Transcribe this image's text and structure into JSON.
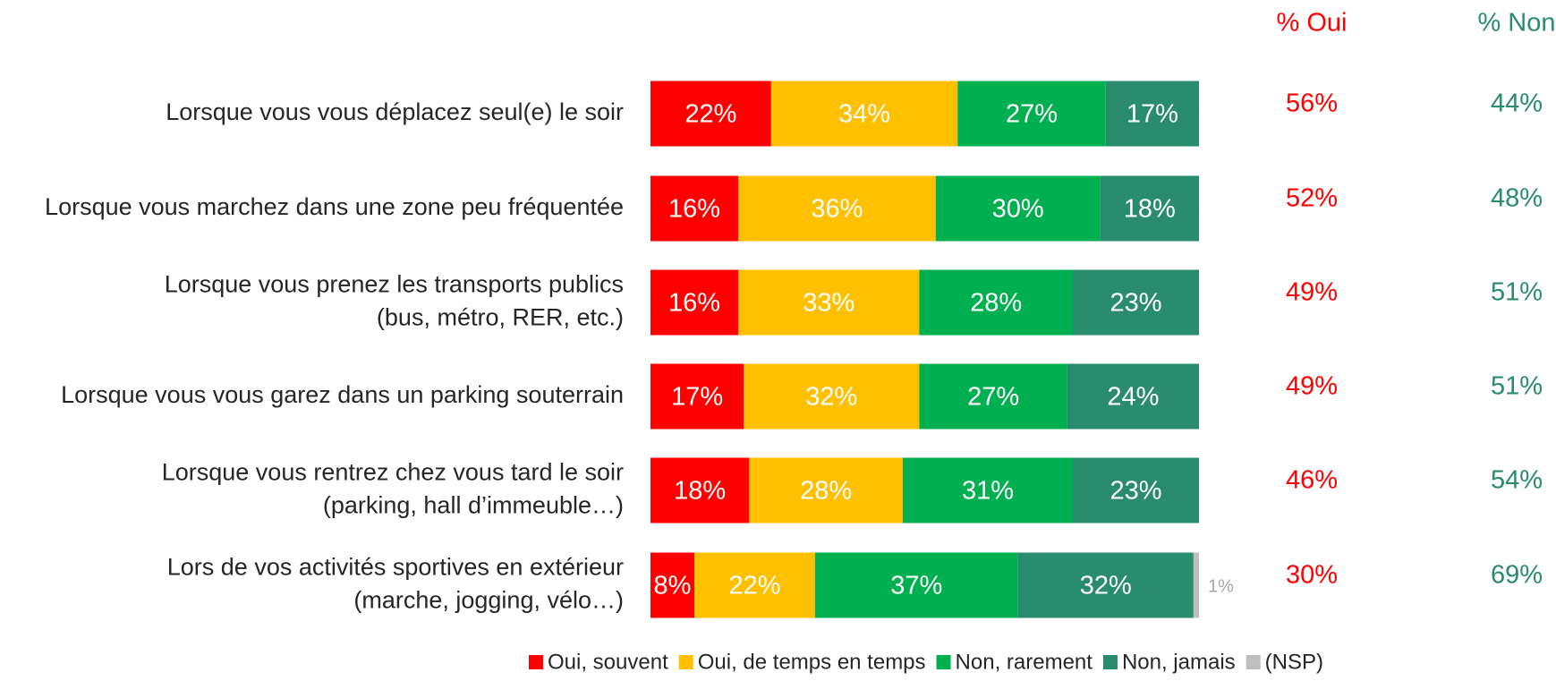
{
  "chart_data": {
    "type": "stacked_bar_horizontal",
    "categories": [
      "Lorsque vous vous déplacez seul(e) le soir",
      "Lorsque vous marchez dans une zone peu fréquentée",
      "Lorsque vous prenez les transports publics\n(bus, métro, RER, etc.)",
      "Lorsque vous vous garez dans un parking souterrain",
      "Lorsque vous rentrez chez vous tard le soir\n(parking, hall d’immeuble…)",
      "Lors de vos activités sportives en extérieur\n(marche, jogging, vélo…)"
    ],
    "xlim": [
      0,
      100
    ],
    "series": [
      {
        "name": "Oui, souvent",
        "color": "#ff0000",
        "values": [
          22,
          16,
          16,
          17,
          18,
          8
        ],
        "value_labels": [
          "22%",
          "16%",
          "16%",
          "17%",
          "18%",
          "8%"
        ]
      },
      {
        "name": "Oui, de temps en temps",
        "color": "#ffc000",
        "values": [
          34,
          36,
          33,
          32,
          28,
          22
        ],
        "value_labels": [
          "34%",
          "36%",
          "33%",
          "32%",
          "28%",
          "22%"
        ]
      },
      {
        "name": "Non, rarement",
        "color": "#00b050",
        "values": [
          27,
          30,
          28,
          27,
          31,
          37
        ],
        "value_labels": [
          "27%",
          "30%",
          "28%",
          "27%",
          "31%",
          "37%"
        ]
      },
      {
        "name": "Non, jamais",
        "color": "#2a8c6e",
        "values": [
          17,
          18,
          23,
          24,
          23,
          32
        ],
        "value_labels": [
          "17%",
          "18%",
          "23%",
          "24%",
          "23%",
          "32%"
        ]
      },
      {
        "name": "(NSP)",
        "color": "#bfbfbf",
        "values": [
          null,
          null,
          null,
          null,
          null,
          1
        ],
        "value_labels": [
          null,
          null,
          null,
          null,
          null,
          "1%"
        ]
      }
    ],
    "totals": [
      {
        "name": "% Oui",
        "color": "#ff0000",
        "values": [
          56,
          52,
          49,
          49,
          46,
          30
        ],
        "value_labels": [
          "56%",
          "52%",
          "49%",
          "49%",
          "46%",
          "30%"
        ]
      },
      {
        "name": "% Non",
        "color": "#2a8c6e",
        "values": [
          44,
          48,
          51,
          51,
          54,
          69
        ],
        "value_labels": [
          "44%",
          "48%",
          "51%",
          "51%",
          "54%",
          "69%"
        ]
      }
    ],
    "legend": "bottom"
  }
}
